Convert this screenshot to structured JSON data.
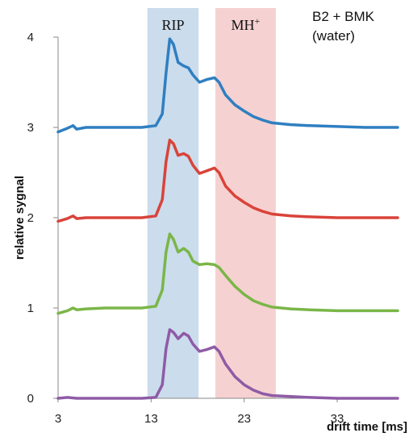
{
  "chart_data": {
    "type": "line",
    "title": "",
    "annotation_lines": [
      "B2 + BMK",
      "(water)"
    ],
    "xlabel": "drift time [ms]",
    "ylabel": "relative sygnal",
    "xlim": [
      3,
      39.5
    ],
    "ylim": [
      0,
      4
    ],
    "x_ticks": [
      3,
      13,
      23,
      33
    ],
    "y_ticks": [
      0,
      1,
      2,
      3,
      4
    ],
    "bands": [
      {
        "label": "RIP",
        "label_sup": "",
        "x_range": [
          12.6,
          18.1
        ],
        "color": "#c5d8ea"
      },
      {
        "label": "MH",
        "label_sup": "+",
        "x_range": [
          19.9,
          26.4
        ],
        "color": "#f5cccc"
      }
    ],
    "series": [
      {
        "color": "#2f7fc1",
        "points": [
          [
            3,
            2.95
          ],
          [
            4,
            2.99
          ],
          [
            4.6,
            3.02
          ],
          [
            5,
            2.98
          ],
          [
            6,
            3.0
          ],
          [
            8,
            3.0
          ],
          [
            10,
            3.0
          ],
          [
            12,
            3.0
          ],
          [
            13.5,
            3.02
          ],
          [
            14.2,
            3.15
          ],
          [
            14.6,
            3.6
          ],
          [
            15.0,
            3.98
          ],
          [
            15.4,
            3.92
          ],
          [
            15.9,
            3.72
          ],
          [
            16.5,
            3.68
          ],
          [
            17.0,
            3.66
          ],
          [
            17.5,
            3.58
          ],
          [
            18.2,
            3.5
          ],
          [
            19.0,
            3.53
          ],
          [
            19.8,
            3.55
          ],
          [
            20.3,
            3.5
          ],
          [
            21.0,
            3.36
          ],
          [
            22.0,
            3.25
          ],
          [
            23.0,
            3.18
          ],
          [
            24.0,
            3.12
          ],
          [
            25.0,
            3.08
          ],
          [
            26.0,
            3.05
          ],
          [
            28.0,
            3.03
          ],
          [
            30.0,
            3.02
          ],
          [
            33.0,
            3.01
          ],
          [
            36.0,
            3.0
          ],
          [
            39.5,
            3.0
          ]
        ]
      },
      {
        "color": "#d9433a",
        "points": [
          [
            3,
            1.96
          ],
          [
            4,
            1.99
          ],
          [
            4.6,
            2.02
          ],
          [
            5,
            1.99
          ],
          [
            6,
            2.0
          ],
          [
            8,
            2.0
          ],
          [
            10,
            2.0
          ],
          [
            12,
            2.0
          ],
          [
            13.5,
            2.02
          ],
          [
            14.2,
            2.2
          ],
          [
            14.6,
            2.62
          ],
          [
            15.0,
            2.86
          ],
          [
            15.4,
            2.82
          ],
          [
            15.9,
            2.69
          ],
          [
            16.5,
            2.71
          ],
          [
            17.0,
            2.68
          ],
          [
            17.5,
            2.58
          ],
          [
            18.2,
            2.49
          ],
          [
            19.0,
            2.52
          ],
          [
            19.8,
            2.55
          ],
          [
            20.3,
            2.5
          ],
          [
            21.0,
            2.35
          ],
          [
            22.0,
            2.24
          ],
          [
            23.0,
            2.17
          ],
          [
            24.0,
            2.11
          ],
          [
            25.0,
            2.07
          ],
          [
            26.0,
            2.04
          ],
          [
            28.0,
            2.02
          ],
          [
            30.0,
            2.01
          ],
          [
            33.0,
            2.0
          ],
          [
            36.0,
            2.0
          ],
          [
            39.5,
            2.0
          ]
        ]
      },
      {
        "color": "#7ab648",
        "points": [
          [
            3,
            0.94
          ],
          [
            4,
            0.97
          ],
          [
            4.6,
            1.0
          ],
          [
            5,
            0.98
          ],
          [
            6,
            0.99
          ],
          [
            8,
            1.0
          ],
          [
            10,
            1.0
          ],
          [
            12,
            1.0
          ],
          [
            13.5,
            1.02
          ],
          [
            14.2,
            1.2
          ],
          [
            14.6,
            1.62
          ],
          [
            15.0,
            1.82
          ],
          [
            15.4,
            1.76
          ],
          [
            15.9,
            1.62
          ],
          [
            16.5,
            1.66
          ],
          [
            17.0,
            1.62
          ],
          [
            17.5,
            1.52
          ],
          [
            18.2,
            1.48
          ],
          [
            19.0,
            1.49
          ],
          [
            19.8,
            1.48
          ],
          [
            20.3,
            1.45
          ],
          [
            21.0,
            1.36
          ],
          [
            22.0,
            1.24
          ],
          [
            23.0,
            1.15
          ],
          [
            24.0,
            1.08
          ],
          [
            25.0,
            1.04
          ],
          [
            26.0,
            1.01
          ],
          [
            28.0,
            0.99
          ],
          [
            30.0,
            0.98
          ],
          [
            33.0,
            0.97
          ],
          [
            36.0,
            0.97
          ],
          [
            39.5,
            0.97
          ]
        ]
      },
      {
        "color": "#8e5ba6",
        "points": [
          [
            3,
            0.0
          ],
          [
            4,
            0.01
          ],
          [
            5,
            0.0
          ],
          [
            6,
            0.0
          ],
          [
            8,
            0.0
          ],
          [
            10,
            0.0
          ],
          [
            12,
            0.0
          ],
          [
            13.5,
            0.01
          ],
          [
            14.2,
            0.15
          ],
          [
            14.6,
            0.55
          ],
          [
            15.0,
            0.76
          ],
          [
            15.4,
            0.73
          ],
          [
            15.9,
            0.66
          ],
          [
            16.5,
            0.72
          ],
          [
            17.0,
            0.69
          ],
          [
            17.5,
            0.6
          ],
          [
            18.2,
            0.52
          ],
          [
            19.0,
            0.54
          ],
          [
            19.8,
            0.57
          ],
          [
            20.3,
            0.52
          ],
          [
            21.0,
            0.38
          ],
          [
            22.0,
            0.24
          ],
          [
            23.0,
            0.15
          ],
          [
            24.0,
            0.09
          ],
          [
            25.0,
            0.05
          ],
          [
            26.0,
            0.03
          ],
          [
            28.0,
            0.02
          ],
          [
            30.0,
            0.01
          ],
          [
            33.0,
            0.0
          ],
          [
            36.0,
            0.0
          ],
          [
            39.5,
            0.0
          ]
        ]
      }
    ],
    "grid": false,
    "legend": "none"
  }
}
